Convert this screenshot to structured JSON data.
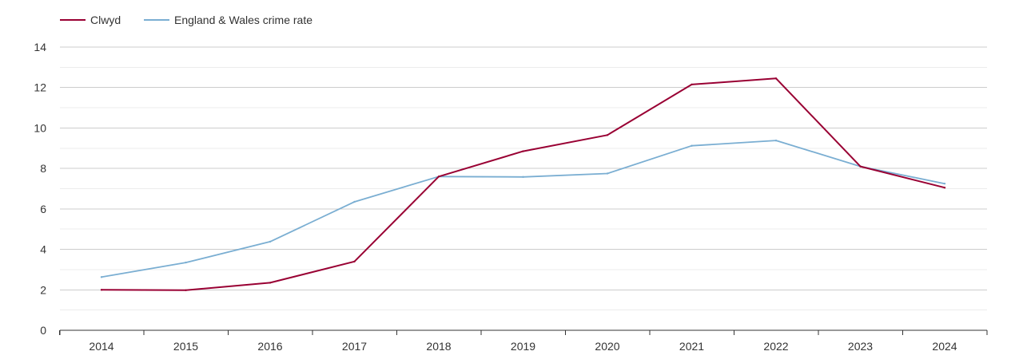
{
  "chart_data": {
    "type": "line",
    "title": "",
    "xlabel": "",
    "ylabel": "",
    "x": [
      "2014",
      "2015",
      "2016",
      "2017",
      "2018",
      "2019",
      "2020",
      "2021",
      "2022",
      "2023",
      "2024"
    ],
    "ylim": [
      0,
      14
    ],
    "yticks": [
      0,
      2,
      4,
      6,
      8,
      10,
      12,
      14
    ],
    "grid": true,
    "legend_position": "top-left",
    "series": [
      {
        "name": "Clwyd",
        "color": "#990033",
        "values": [
          2.0,
          1.98,
          2.35,
          3.4,
          7.6,
          8.85,
          9.65,
          12.15,
          12.45,
          8.1,
          7.05
        ]
      },
      {
        "name": "England & Wales crime rate",
        "color": "#7aaed2",
        "values": [
          2.63,
          3.35,
          4.38,
          6.35,
          7.6,
          7.58,
          7.75,
          9.12,
          9.38,
          8.1,
          7.25
        ]
      }
    ]
  }
}
